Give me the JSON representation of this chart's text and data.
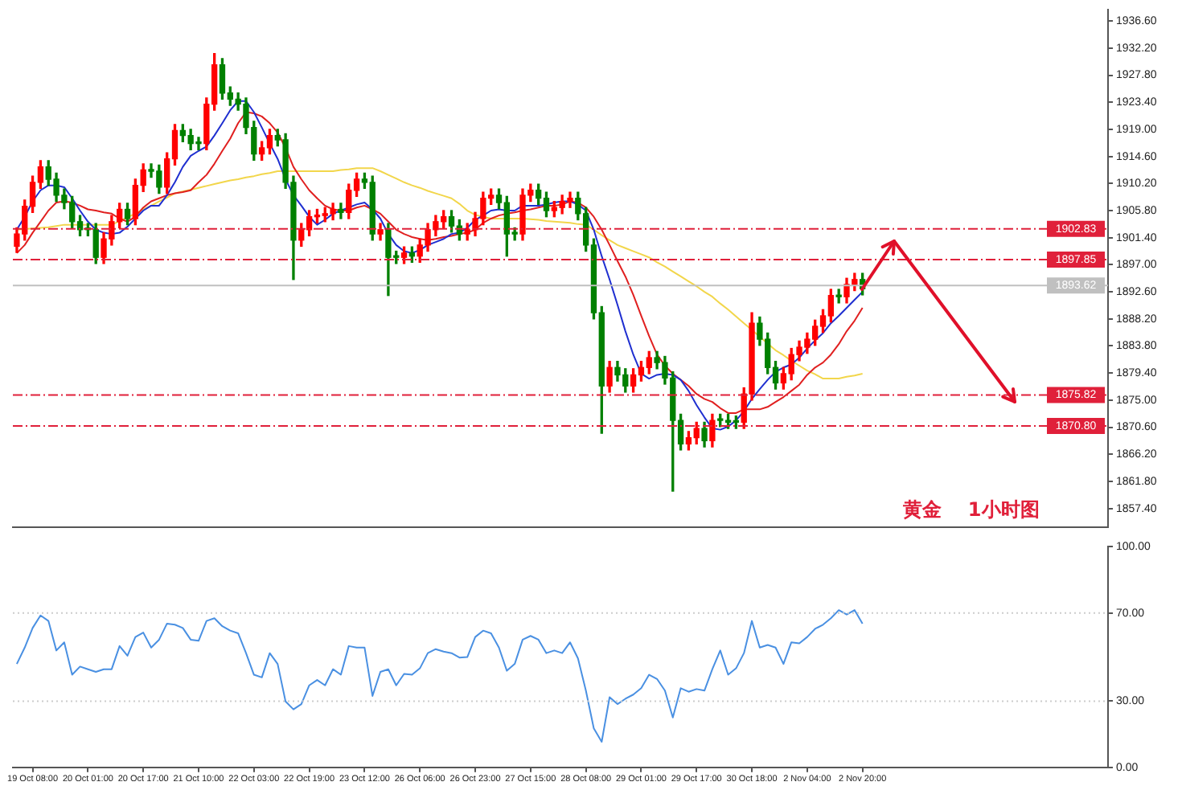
{
  "chart_data": [
    {
      "type": "candlestick",
      "tick_labels": "y",
      "grid": false,
      "legend": false,
      "marker": "none",
      "categories": [
        null,
        null,
        null,
        null,
        null,
        null,
        null,
        null,
        null,
        null,
        null,
        null,
        null,
        null,
        null,
        null,
        null,
        null,
        null,
        null,
        null,
        null,
        null,
        null,
        null,
        null,
        null,
        null,
        null,
        null,
        null,
        null,
        null,
        null,
        null,
        null,
        null,
        null,
        null,
        null,
        null,
        null,
        null,
        null,
        null,
        null,
        null,
        null,
        null,
        null,
        null,
        null,
        null,
        null,
        null,
        null,
        null,
        null,
        null,
        null,
        null,
        null,
        null,
        null,
        null,
        null,
        null,
        null,
        null,
        null,
        null,
        null,
        null,
        null,
        null,
        null,
        null,
        null,
        null,
        null,
        null,
        null,
        null,
        null,
        null,
        null,
        null,
        null,
        null,
        null,
        null,
        null,
        null,
        null,
        null,
        null,
        null,
        null,
        null,
        null,
        null,
        null,
        null,
        null,
        null,
        null,
        null,
        null
      ],
      "ohlc": [
        [
          1900.0,
          1903.0,
          1899.0,
          1902.0
        ],
        [
          1902.0,
          1907.5,
          1901.0,
          1906.5
        ],
        [
          1906.5,
          1911.4,
          1905.5,
          1910.4
        ],
        [
          1910.4,
          1913.9,
          1909.4,
          1912.9
        ],
        [
          1912.9,
          1913.9,
          1909.9,
          1910.9
        ],
        [
          1910.9,
          1911.9,
          1907.3,
          1908.3
        ],
        [
          1908.3,
          1909.3,
          1906.1,
          1907.1
        ],
        [
          1907.1,
          1908.1,
          1903.0,
          1904.0
        ],
        [
          1904.0,
          1905.0,
          1901.7,
          1902.7
        ],
        [
          1902.7,
          1903.7,
          1901.7,
          1902.7
        ],
        [
          1902.7,
          1903.7,
          1897.2,
          1898.2
        ],
        [
          1898.2,
          1902.2,
          1897.2,
          1901.2
        ],
        [
          1901.2,
          1905.0,
          1900.2,
          1904.0
        ],
        [
          1904.0,
          1907.0,
          1903.0,
          1906.0
        ],
        [
          1906.0,
          1907.0,
          1903.5,
          1904.5
        ],
        [
          1904.5,
          1910.9,
          1903.5,
          1909.9
        ],
        [
          1909.9,
          1913.4,
          1908.9,
          1912.4
        ],
        [
          1912.4,
          1913.4,
          1911.2,
          1912.2
        ],
        [
          1912.2,
          1913.2,
          1908.6,
          1909.6
        ],
        [
          1909.6,
          1915.2,
          1908.6,
          1914.2
        ],
        [
          1914.2,
          1919.8,
          1913.2,
          1918.8
        ],
        [
          1918.8,
          1919.8,
          1917.0,
          1918.0
        ],
        [
          1918.0,
          1919.0,
          1915.7,
          1916.7
        ],
        [
          1916.7,
          1917.7,
          1915.7,
          1916.7
        ],
        [
          1916.7,
          1924.1,
          1915.7,
          1923.1
        ],
        [
          1923.1,
          1931.3,
          1922.1,
          1929.5
        ],
        [
          1929.5,
          1930.5,
          1923.9,
          1924.9
        ],
        [
          1924.9,
          1925.9,
          1922.9,
          1923.9
        ],
        [
          1923.9,
          1924.9,
          1922.1,
          1923.1
        ],
        [
          1923.1,
          1924.1,
          1918.3,
          1919.3
        ],
        [
          1919.3,
          1920.3,
          1914.0,
          1915.0
        ],
        [
          1915.0,
          1917.0,
          1914.0,
          1916.0
        ],
        [
          1916.0,
          1919.0,
          1915.0,
          1918.0
        ],
        [
          1918.0,
          1919.0,
          1916.3,
          1917.3
        ],
        [
          1917.3,
          1918.3,
          1909.4,
          1910.4
        ],
        [
          1910.4,
          1911.4,
          1894.6,
          1901.0
        ],
        [
          1901.0,
          1903.7,
          1900.0,
          1902.7
        ],
        [
          1902.7,
          1905.8,
          1901.7,
          1904.8
        ],
        [
          1904.8,
          1906.0,
          1903.8,
          1905.0
        ],
        [
          1905.0,
          1906.3,
          1904.0,
          1905.3
        ],
        [
          1905.3,
          1907.0,
          1904.3,
          1906.0
        ],
        [
          1906.0,
          1907.0,
          1904.5,
          1905.5
        ],
        [
          1905.5,
          1910.1,
          1904.5,
          1909.1
        ],
        [
          1909.1,
          1911.9,
          1908.1,
          1910.9
        ],
        [
          1910.9,
          1911.9,
          1909.4,
          1910.4
        ],
        [
          1910.4,
          1911.4,
          1901.0,
          1902.0
        ],
        [
          1902.0,
          1903.7,
          1901.0,
          1902.7
        ],
        [
          1902.7,
          1903.7,
          1892.0,
          1898.2
        ],
        [
          1898.2,
          1899.2,
          1897.2,
          1898.2
        ],
        [
          1898.2,
          1899.9,
          1897.2,
          1898.9
        ],
        [
          1898.9,
          1899.9,
          1897.4,
          1898.4
        ],
        [
          1898.4,
          1901.2,
          1897.4,
          1900.2
        ],
        [
          1900.2,
          1903.7,
          1899.2,
          1902.7
        ],
        [
          1902.7,
          1905.0,
          1901.7,
          1904.0
        ],
        [
          1904.0,
          1905.8,
          1903.0,
          1904.8
        ],
        [
          1904.8,
          1905.8,
          1902.3,
          1903.3
        ],
        [
          1903.3,
          1904.3,
          1901.0,
          1902.0
        ],
        [
          1902.0,
          1903.7,
          1901.0,
          1902.7
        ],
        [
          1902.7,
          1905.5,
          1901.7,
          1904.5
        ],
        [
          1904.5,
          1908.8,
          1903.5,
          1907.8
        ],
        [
          1907.8,
          1909.3,
          1906.8,
          1908.3
        ],
        [
          1908.3,
          1909.3,
          1906.1,
          1907.1
        ],
        [
          1907.1,
          1908.1,
          1898.4,
          1902.0
        ],
        [
          1902.0,
          1903.0,
          1901.0,
          1902.0
        ],
        [
          1902.0,
          1909.3,
          1901.0,
          1908.3
        ],
        [
          1908.3,
          1910.1,
          1907.3,
          1909.1
        ],
        [
          1909.1,
          1910.1,
          1906.8,
          1907.8
        ],
        [
          1907.8,
          1908.8,
          1904.8,
          1905.8
        ],
        [
          1905.8,
          1907.3,
          1904.8,
          1906.3
        ],
        [
          1906.3,
          1908.3,
          1905.3,
          1907.3
        ],
        [
          1907.3,
          1908.8,
          1906.3,
          1907.8
        ],
        [
          1907.8,
          1908.8,
          1904.3,
          1905.3
        ],
        [
          1905.3,
          1906.3,
          1899.2,
          1900.2
        ],
        [
          1900.2,
          1901.2,
          1888.2,
          1889.2
        ],
        [
          1889.2,
          1890.2,
          1869.6,
          1877.3
        ],
        [
          1877.3,
          1881.3,
          1876.3,
          1880.3
        ],
        [
          1880.3,
          1881.3,
          1878.1,
          1879.1
        ],
        [
          1879.1,
          1880.1,
          1876.3,
          1877.3
        ],
        [
          1877.3,
          1880.1,
          1876.3,
          1879.1
        ],
        [
          1879.1,
          1881.3,
          1878.1,
          1880.3
        ],
        [
          1880.3,
          1882.9,
          1879.3,
          1881.9
        ],
        [
          1881.9,
          1882.9,
          1880.1,
          1881.1
        ],
        [
          1881.1,
          1882.1,
          1877.6,
          1878.6
        ],
        [
          1878.6,
          1879.6,
          1860.2,
          1871.7
        ],
        [
          1871.7,
          1872.7,
          1866.9,
          1867.9
        ],
        [
          1867.9,
          1869.9,
          1866.9,
          1868.9
        ],
        [
          1868.9,
          1871.4,
          1867.9,
          1870.4
        ],
        [
          1870.4,
          1871.4,
          1867.4,
          1868.4
        ],
        [
          1868.4,
          1872.7,
          1867.4,
          1871.7
        ],
        [
          1871.7,
          1872.7,
          1870.7,
          1871.7
        ],
        [
          1871.7,
          1872.7,
          1870.4,
          1871.4
        ],
        [
          1871.4,
          1872.4,
          1870.4,
          1871.4
        ],
        [
          1871.4,
          1877.0,
          1870.4,
          1876.0
        ],
        [
          1876.0,
          1889.2,
          1875.0,
          1887.5
        ],
        [
          1887.5,
          1888.5,
          1883.9,
          1884.9
        ],
        [
          1884.9,
          1885.9,
          1879.3,
          1880.3
        ],
        [
          1880.3,
          1881.3,
          1876.8,
          1877.8
        ],
        [
          1877.8,
          1880.3,
          1876.8,
          1879.3
        ],
        [
          1879.3,
          1883.4,
          1878.3,
          1882.4
        ],
        [
          1882.4,
          1884.6,
          1881.4,
          1883.6
        ],
        [
          1883.6,
          1885.9,
          1882.6,
          1884.9
        ],
        [
          1884.9,
          1888.0,
          1883.9,
          1887.0
        ],
        [
          1887.0,
          1889.7,
          1886.0,
          1888.7
        ],
        [
          1888.7,
          1893.0,
          1887.7,
          1892.0
        ],
        [
          1892.0,
          1893.0,
          1890.8,
          1891.8
        ],
        [
          1891.8,
          1894.8,
          1890.8,
          1893.8
        ],
        [
          1893.8,
          1895.6,
          1892.8,
          1894.6
        ],
        [
          1894.6,
          1895.6,
          1892.1,
          1893.1
        ]
      ],
      "colors": [
        "#ff0000",
        "#ff0000",
        "#ff0000",
        "#ff0000",
        "#008000",
        "#008000",
        "#008000",
        "#008000",
        "#008000",
        "#008000",
        "#008000",
        "#ff0000",
        "#ff0000",
        "#ff0000",
        "#008000",
        "#ff0000",
        "#ff0000",
        "#008000",
        "#008000",
        "#ff0000",
        "#ff0000",
        "#008000",
        "#008000",
        "#008000",
        "#ff0000",
        "#ff0000",
        "#008000",
        "#008000",
        "#008000",
        "#008000",
        "#008000",
        "#ff0000",
        "#ff0000",
        "#008000",
        "#008000",
        "#008000",
        "#ff0000",
        "#ff0000",
        "#ff0000",
        "#ff0000",
        "#ff0000",
        "#008000",
        "#ff0000",
        "#ff0000",
        "#008000",
        "#008000",
        "#ff0000",
        "#008000",
        "#008000",
        "#ff0000",
        "#008000",
        "#ff0000",
        "#ff0000",
        "#ff0000",
        "#ff0000",
        "#008000",
        "#008000",
        "#ff0000",
        "#ff0000",
        "#ff0000",
        "#ff0000",
        "#008000",
        "#008000",
        "#008000",
        "#ff0000",
        "#ff0000",
        "#008000",
        "#008000",
        "#ff0000",
        "#ff0000",
        "#ff0000",
        "#008000",
        "#008000",
        "#008000",
        "#008000",
        "#ff0000",
        "#008000",
        "#008000",
        "#ff0000",
        "#ff0000",
        "#ff0000",
        "#008000",
        "#008000",
        "#008000",
        "#008000",
        "#ff0000",
        "#ff0000",
        "#008000",
        "#ff0000",
        "#008000",
        "#008000",
        "#008000",
        "#ff0000",
        "#ff0000",
        "#008000",
        "#008000",
        "#008000",
        "#ff0000",
        "#ff0000",
        "#ff0000",
        "#ff0000",
        "#ff0000",
        "#ff0000",
        "#ff0000",
        "#008000",
        "#ff0000",
        "#ff0000",
        "#008000"
      ],
      "series": [
        {
          "type": "line",
          "color": "#1f2fd0",
          "values": [
            1902.7,
            1904.8,
            1907.3,
            1909.1,
            1909.9,
            1909.9,
            1909.6,
            1907.8,
            1905.8,
            1904.0,
            1902.7,
            1902.2,
            1902.0,
            1902.2,
            1903.2,
            1904.5,
            1905.8,
            1906.6,
            1906.6,
            1908.3,
            1910.4,
            1912.9,
            1914.7,
            1915.5,
            1916.2,
            1918.0,
            1920.0,
            1922.1,
            1923.6,
            1923.6,
            1921.8,
            1919.3,
            1916.7,
            1914.2,
            1910.9,
            1908.3,
            1906.6,
            1904.8,
            1903.5,
            1904.3,
            1905.3,
            1905.8,
            1906.3,
            1906.8,
            1907.1,
            1906.0,
            1904.5,
            1902.0,
            1900.2,
            1899.2,
            1898.9,
            1899.4,
            1900.2,
            1900.7,
            1901.2,
            1902.0,
            1902.2,
            1903.0,
            1904.3,
            1905.0,
            1905.8,
            1906.0,
            1905.8,
            1905.8,
            1906.6,
            1906.6,
            1906.6,
            1906.8,
            1907.1,
            1907.3,
            1907.3,
            1906.8,
            1905.8,
            1902.7,
            1898.4,
            1894.6,
            1890.5,
            1886.2,
            1882.4,
            1879.3,
            1878.5,
            1879.1,
            1879.3,
            1879.1,
            1878.3,
            1876.5,
            1874.2,
            1872.2,
            1870.4,
            1870.2,
            1870.7,
            1871.7,
            1873.2,
            1875.2,
            1876.8,
            1878.3,
            1879.6,
            1880.3,
            1880.8,
            1881.9,
            1883.4,
            1884.7,
            1885.9,
            1887.5,
            1888.7,
            1890.0,
            1891.3,
            1892.6
          ]
        },
        {
          "type": "line",
          "color": "#e02020",
          "values": [
            1898.9,
            1900.2,
            1902.2,
            1904.0,
            1905.8,
            1907.1,
            1907.3,
            1907.1,
            1906.6,
            1906.0,
            1905.8,
            1905.5,
            1905.3,
            1904.5,
            1904.0,
            1904.8,
            1906.3,
            1907.3,
            1907.8,
            1908.3,
            1908.6,
            1908.8,
            1909.1,
            1910.4,
            1911.6,
            1913.4,
            1915.5,
            1917.5,
            1920.0,
            1921.8,
            1921.6,
            1921.1,
            1920.0,
            1918.5,
            1916.0,
            1912.9,
            1910.9,
            1909.1,
            1907.8,
            1906.6,
            1906.0,
            1905.8,
            1905.8,
            1906.3,
            1906.6,
            1906.0,
            1905.3,
            1904.0,
            1902.7,
            1902.0,
            1901.5,
            1901.2,
            1901.0,
            1901.2,
            1901.5,
            1901.7,
            1902.0,
            1902.2,
            1902.7,
            1903.8,
            1904.5,
            1905.0,
            1905.3,
            1905.5,
            1905.8,
            1906.0,
            1906.3,
            1906.6,
            1906.6,
            1906.8,
            1907.3,
            1907.1,
            1906.3,
            1904.8,
            1902.7,
            1900.2,
            1897.6,
            1895.1,
            1892.1,
            1888.7,
            1885.4,
            1882.4,
            1880.6,
            1879.3,
            1878.3,
            1877.3,
            1876.0,
            1875.2,
            1874.7,
            1873.7,
            1872.9,
            1872.9,
            1873.5,
            1873.5,
            1873.5,
            1873.9,
            1874.7,
            1875.5,
            1876.5,
            1877.5,
            1879.1,
            1880.3,
            1881.1,
            1882.4,
            1884.1,
            1886.2,
            1887.9,
            1890.0
          ]
        },
        {
          "type": "line",
          "color": "#f2d64b",
          "values": [
            1902.7,
            1902.8,
            1902.9,
            1903.0,
            1903.1,
            1903.3,
            1903.5,
            1903.5,
            1903.5,
            1903.5,
            1903.5,
            1903.5,
            1903.5,
            1904.1,
            1904.7,
            1905.3,
            1906.0,
            1906.6,
            1907.3,
            1907.9,
            1908.6,
            1908.9,
            1909.2,
            1909.5,
            1909.8,
            1910.1,
            1910.4,
            1910.7,
            1910.9,
            1911.2,
            1911.4,
            1911.7,
            1911.9,
            1912.2,
            1912.2,
            1912.2,
            1912.2,
            1912.2,
            1912.2,
            1912.2,
            1912.2,
            1912.4,
            1912.5,
            1912.7,
            1912.7,
            1912.7,
            1912.2,
            1911.6,
            1911.0,
            1910.4,
            1909.9,
            1909.5,
            1909.0,
            1908.6,
            1908.2,
            1907.8,
            1906.9,
            1905.8,
            1905.1,
            1904.8,
            1904.5,
            1904.5,
            1904.5,
            1904.5,
            1904.5,
            1904.4,
            1904.3,
            1904.1,
            1904.0,
            1903.9,
            1903.8,
            1903.6,
            1903.5,
            1902.7,
            1901.8,
            1901.0,
            1900.2,
            1899.7,
            1899.2,
            1898.7,
            1898.2,
            1897.4,
            1896.7,
            1895.9,
            1895.1,
            1894.3,
            1893.5,
            1892.6,
            1891.8,
            1890.7,
            1889.7,
            1888.6,
            1887.5,
            1886.4,
            1885.3,
            1884.2,
            1883.1,
            1882.3,
            1881.4,
            1880.6,
            1879.8,
            1879.2,
            1878.5,
            1878.5,
            1878.5,
            1878.8,
            1879.0,
            1879.3
          ]
        }
      ],
      "ylim": [
        1854.4,
        1938.4
      ],
      "yticks": [
        {
          "value": 1936.6,
          "label": "1936.60"
        },
        {
          "value": 1932.2,
          "label": "1932.20"
        },
        {
          "value": 1927.8,
          "label": "1927.80"
        },
        {
          "value": 1923.4,
          "label": "1923.40"
        },
        {
          "value": 1919.0,
          "label": "1919.00"
        },
        {
          "value": 1914.6,
          "label": "1914.60"
        },
        {
          "value": 1910.2,
          "label": "1910.20"
        },
        {
          "value": 1905.8,
          "label": "1905.80"
        },
        {
          "value": 1901.4,
          "label": "1901.40"
        },
        {
          "value": 1897.0,
          "label": "1897.00"
        },
        {
          "value": 1892.6,
          "label": "1892.60"
        },
        {
          "value": 1888.2,
          "label": "1888.20"
        },
        {
          "value": 1883.8,
          "label": "1883.80"
        },
        {
          "value": 1879.4,
          "label": "1879.40"
        },
        {
          "value": 1875.0,
          "label": "1875.00"
        },
        {
          "value": 1870.6,
          "label": "1870.60"
        },
        {
          "value": 1866.2,
          "label": "1866.20"
        },
        {
          "value": 1861.8,
          "label": "1861.80"
        },
        {
          "value": 1857.4,
          "label": "1857.40"
        }
      ],
      "ref_lines": [
        {
          "axis": "y",
          "value": 1902.83,
          "label": "1902.83",
          "color": "#e0203a",
          "line_style": "dashed"
        },
        {
          "axis": "y",
          "value": 1897.85,
          "label": "1897.85",
          "color": "#e0203a",
          "line_style": "dashed"
        },
        {
          "axis": "y",
          "value": 1893.62,
          "label": "1893.62",
          "color": "#c0c0c0",
          "line_style": "solid"
        },
        {
          "axis": "y",
          "value": 1875.82,
          "label": "1875.82",
          "color": "#e0203a",
          "line_style": "dashed"
        },
        {
          "axis": "y",
          "value": 1870.8,
          "label": "1870.80",
          "color": "#e0203a",
          "line_style": "dashed"
        }
      ],
      "annotations": [
        "黄金　 1小时图"
      ]
    },
    {
      "type": "line",
      "grid": false,
      "legend": false,
      "marker": "none",
      "categories": [
        null,
        null,
        "19 Oct 08:00",
        null,
        null,
        null,
        null,
        null,
        null,
        "20 Oct 01:00",
        null,
        null,
        null,
        null,
        null,
        null,
        "20 Oct 17:00",
        null,
        null,
        null,
        null,
        null,
        null,
        "21 Oct 10:00",
        null,
        null,
        null,
        null,
        null,
        null,
        "22 Oct 03:00",
        null,
        null,
        null,
        null,
        null,
        null,
        "22 Oct 19:00",
        null,
        null,
        null,
        null,
        null,
        null,
        "23 Oct 12:00",
        null,
        null,
        null,
        null,
        null,
        null,
        "26 Oct 06:00",
        null,
        null,
        null,
        null,
        null,
        null,
        "26 Oct 23:00",
        null,
        null,
        null,
        null,
        null,
        null,
        "27 Oct 15:00",
        null,
        null,
        null,
        null,
        null,
        null,
        "28 Oct 08:00",
        null,
        null,
        null,
        null,
        null,
        null,
        "29 Oct 01:00",
        null,
        null,
        null,
        null,
        null,
        null,
        "29 Oct 17:00",
        null,
        null,
        null,
        null,
        null,
        null,
        "30 Oct 18:00",
        null,
        null,
        null,
        null,
        null,
        null,
        "2 Nov 04:00",
        null,
        null,
        null,
        null,
        null,
        null,
        "2 Nov 20:00"
      ],
      "series": [
        {
          "color": "#4a90e2",
          "values": [
            46.9,
            54.3,
            63.2,
            68.9,
            66.4,
            53.0,
            56.7,
            42.0,
            45.7,
            44.5,
            43.3,
            44.5,
            44.5,
            55.0,
            50.6,
            59.1,
            61.1,
            54.3,
            57.9,
            65.2,
            64.7,
            63.2,
            57.9,
            57.4,
            66.4,
            67.6,
            64.0,
            62.0,
            60.8,
            51.8,
            42.0,
            40.8,
            51.8,
            46.9,
            29.9,
            26.3,
            28.7,
            37.2,
            39.6,
            37.2,
            44.5,
            42.0,
            55.0,
            54.3,
            54.3,
            32.4,
            43.3,
            44.5,
            37.2,
            42.4,
            42.0,
            44.9,
            51.8,
            53.6,
            52.5,
            51.8,
            49.8,
            50.0,
            59.1,
            62.0,
            60.8,
            54.3,
            43.8,
            46.9,
            57.9,
            59.6,
            57.9,
            51.8,
            53.0,
            51.8,
            56.7,
            49.4,
            34.8,
            17.7,
            11.6,
            31.8,
            28.7,
            31.1,
            33.0,
            35.9,
            42.0,
            40.1,
            34.8,
            22.6,
            35.9,
            34.3,
            35.5,
            34.8,
            44.5,
            53.0,
            42.0,
            44.9,
            51.8,
            66.4,
            54.3,
            55.5,
            54.3,
            46.9,
            56.7,
            56.2,
            59.1,
            62.8,
            64.7,
            67.6,
            71.3,
            69.3,
            71.3,
            65.2
          ]
        }
      ],
      "ylim": [
        0,
        100
      ],
      "yticks": [
        {
          "value": 0,
          "label": "0.00"
        },
        {
          "value": 30,
          "label": "30.00"
        },
        {
          "value": 70,
          "label": "70.00"
        },
        {
          "value": 100,
          "label": "100.00"
        }
      ],
      "ref_lines": [
        {
          "axis": "y",
          "value": 30,
          "color": "#cccccc",
          "line_style": "dotted"
        },
        {
          "axis": "y",
          "value": 70,
          "color": "#cccccc",
          "line_style": "dotted"
        }
      ]
    }
  ]
}
